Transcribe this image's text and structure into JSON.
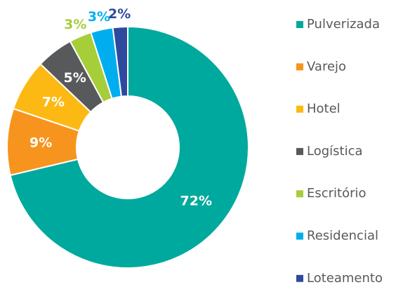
{
  "chart_data": {
    "type": "donut",
    "categories": [
      "Pulverizada",
      "Varejo",
      "Hotel",
      "Logística",
      "Escritório",
      "Residencial",
      "Loteamento"
    ],
    "values": [
      72,
      9,
      7,
      5,
      3,
      3,
      2
    ],
    "value_labels": [
      "72%",
      "9%",
      "7%",
      "5%",
      "3%",
      "3%",
      "2%"
    ],
    "colors": [
      "#00a99d",
      "#f7941d",
      "#fdb913",
      "#58595b",
      "#a6ce39",
      "#00aeef",
      "#2e4a9e"
    ],
    "legend": "right"
  }
}
